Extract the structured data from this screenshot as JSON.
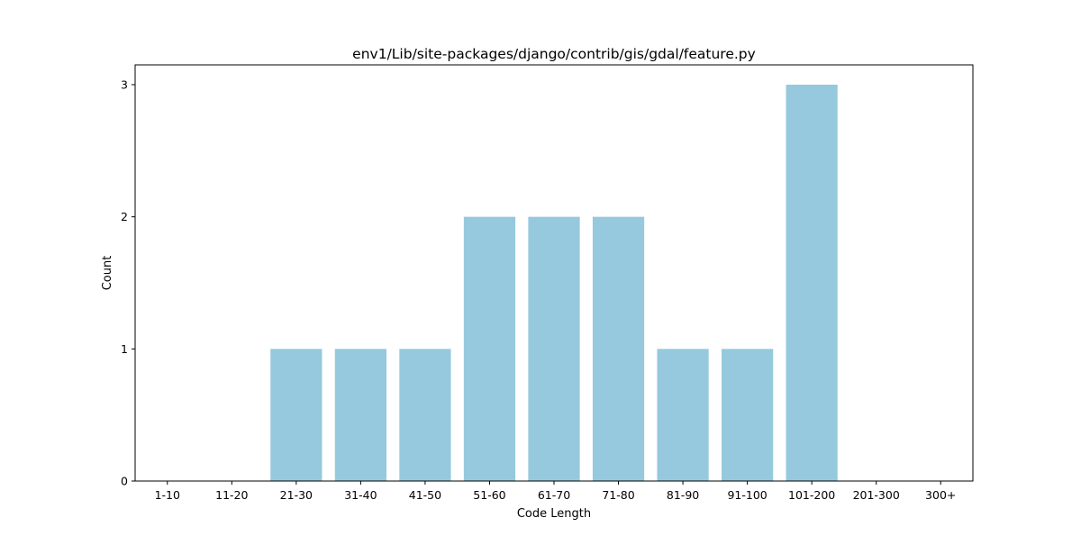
{
  "chart_data": {
    "type": "bar",
    "title": "env1/Lib/site-packages/django/contrib/gis/gdal/feature.py",
    "xlabel": "Code Length",
    "ylabel": "Count",
    "categories": [
      "1-10",
      "11-20",
      "21-30",
      "31-40",
      "41-50",
      "51-60",
      "61-70",
      "71-80",
      "81-90",
      "91-100",
      "101-200",
      "201-300",
      "300+"
    ],
    "values": [
      0,
      0,
      1,
      1,
      1,
      2,
      2,
      2,
      1,
      1,
      3,
      0,
      0
    ],
    "yticks": [
      0,
      1,
      2,
      3
    ],
    "ylim": [
      0,
      3.15
    ],
    "bar_color": "#96c9dd",
    "grid": false,
    "legend": "none"
  }
}
